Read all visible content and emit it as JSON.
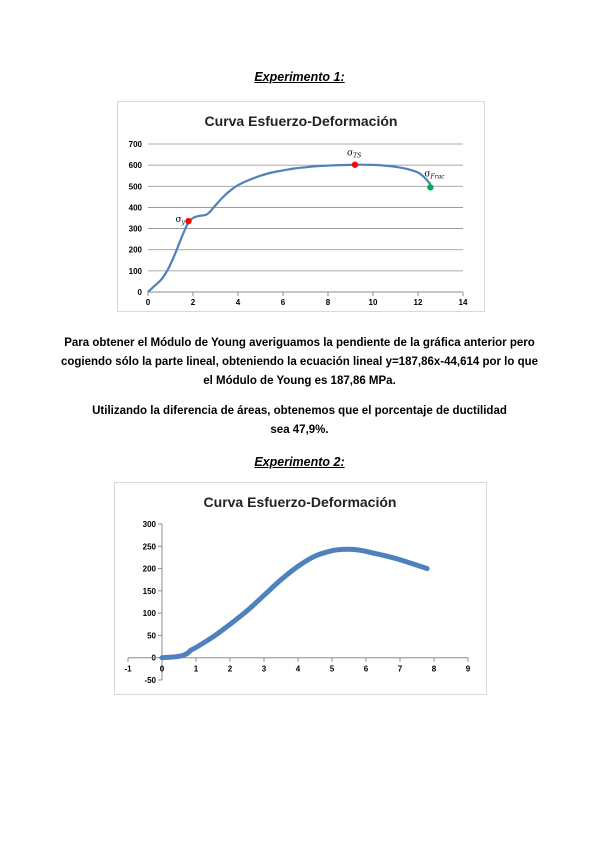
{
  "heading1": "Experimento 1:",
  "heading2": "Experimento 2:",
  "paragraph1": "Para obtener el Módulo de Young averiguamos la pendiente de la gráfica anterior pero cogiendo sólo la parte lineal, obteniendo la ecuación lineal y=187,86x-44,614 por lo que el Módulo de Young es 187,86 MPa.",
  "paragraph2": "Utilizando la diferencia de áreas, obtenemos que el porcentaje de ductilidad sea 47,9%.",
  "chart_data": [
    {
      "type": "line",
      "title": "Curva Esfuerzo-Deformación",
      "xlabel": "",
      "ylabel": "",
      "xlim": [
        0,
        14
      ],
      "ylim": [
        0,
        700
      ],
      "xticks": [
        0,
        2,
        4,
        6,
        8,
        10,
        12,
        14
      ],
      "yticks": [
        0,
        100,
        200,
        300,
        400,
        500,
        600,
        700
      ],
      "grid": "horizontal",
      "series": [
        {
          "color": "#4f81bd",
          "x": [
            0,
            0.3,
            0.6,
            0.9,
            1.2,
            1.5,
            1.8,
            2.0,
            2.2,
            2.4,
            2.6,
            2.8,
            3.0,
            3.3,
            3.6,
            4.0,
            4.5,
            5.0,
            5.5,
            6.0,
            6.5,
            7.0,
            7.5,
            8.0,
            8.5,
            9.0,
            9.2,
            9.5,
            10.0,
            10.5,
            11.0,
            11.5,
            12.0,
            12.3,
            12.55
          ],
          "y": [
            0,
            30,
            60,
            110,
            180,
            260,
            330,
            350,
            358,
            362,
            366,
            385,
            410,
            445,
            475,
            505,
            530,
            550,
            565,
            575,
            584,
            590,
            595,
            598,
            600,
            601,
            602,
            602,
            601,
            598,
            592,
            582,
            565,
            540,
            510
          ]
        }
      ],
      "points": [
        {
          "name": "yield",
          "symbol": "σ",
          "subscript": "y",
          "x": 1.8,
          "y": 335,
          "color": "#ff0000"
        },
        {
          "name": "tensile-strength",
          "symbol": "σ",
          "subscript": "TS",
          "x": 9.2,
          "y": 602,
          "color": "#ff0000"
        },
        {
          "name": "fracture",
          "symbol": "σ",
          "subscript": "Frac",
          "x": 12.55,
          "y": 495,
          "color": "#00b050"
        }
      ]
    },
    {
      "type": "line",
      "title": "Curva Esfuerzo-Deformación",
      "xlabel": "",
      "ylabel": "",
      "xlim": [
        -1,
        9
      ],
      "ylim": [
        -50,
        300
      ],
      "xticks": [
        -1,
        0,
        1,
        2,
        3,
        4,
        5,
        6,
        7,
        8,
        9
      ],
      "yticks": [
        -50,
        0,
        50,
        100,
        150,
        200,
        250,
        300
      ],
      "grid": "none",
      "series": [
        {
          "color": "#4f81bd",
          "x": [
            0,
            0.2,
            0.4,
            0.6,
            0.75,
            0.85,
            1.0,
            1.3,
            1.6,
            2.0,
            2.5,
            3.0,
            3.5,
            4.0,
            4.5,
            5.0,
            5.3,
            5.6,
            5.9,
            6.2,
            6.6,
            7.0,
            7.4,
            7.8
          ],
          "y": [
            0,
            1,
            2,
            5,
            10,
            17,
            23,
            37,
            52,
            75,
            105,
            140,
            175,
            205,
            228,
            240,
            243,
            243,
            240,
            235,
            228,
            220,
            210,
            200
          ]
        }
      ]
    }
  ]
}
